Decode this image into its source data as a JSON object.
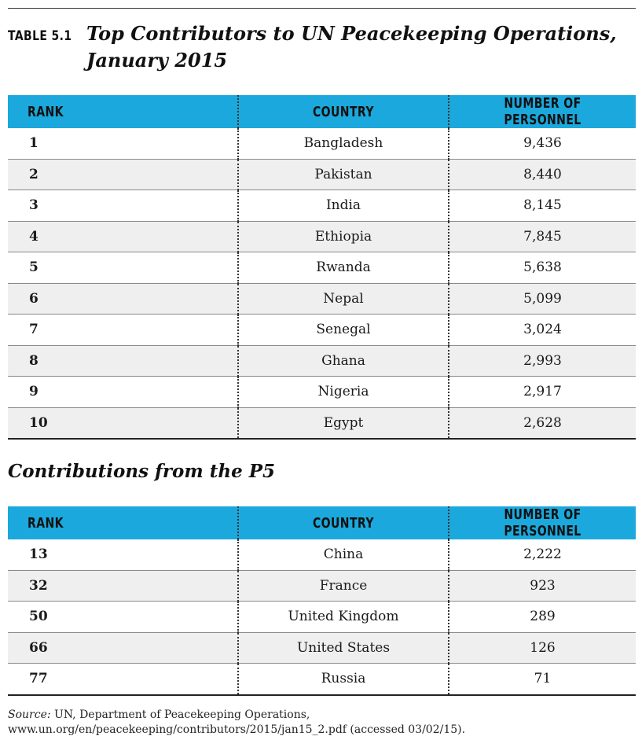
{
  "table_label": "TABLE 5.1",
  "title": "Top Contributors to UN Peacekeeping Operations, January 2015",
  "columns": {
    "rank": "RANK",
    "country": "COUNTRY",
    "personnel": "NUMBER OF PERSONNEL"
  },
  "top_rows": [
    {
      "rank": "1",
      "country": "Bangladesh",
      "personnel": "9,436"
    },
    {
      "rank": "2",
      "country": "Pakistan",
      "personnel": "8,440"
    },
    {
      "rank": "3",
      "country": "India",
      "personnel": "8,145"
    },
    {
      "rank": "4",
      "country": "Ethiopia",
      "personnel": "7,845"
    },
    {
      "rank": "5",
      "country": "Rwanda",
      "personnel": "5,638"
    },
    {
      "rank": "6",
      "country": "Nepal",
      "personnel": "5,099"
    },
    {
      "rank": "7",
      "country": "Senegal",
      "personnel": "3,024"
    },
    {
      "rank": "8",
      "country": "Ghana",
      "personnel": "2,993"
    },
    {
      "rank": "9",
      "country": "Nigeria",
      "personnel": "2,917"
    },
    {
      "rank": "10",
      "country": "Egypt",
      "personnel": "2,628"
    }
  ],
  "p5_heading": "Contributions from the P5",
  "p5_rows": [
    {
      "rank": "13",
      "country": "China",
      "personnel": "2,222"
    },
    {
      "rank": "32",
      "country": "France",
      "personnel": "923"
    },
    {
      "rank": "50",
      "country": "United Kingdom",
      "personnel": "289"
    },
    {
      "rank": "66",
      "country": "United States",
      "personnel": "126"
    },
    {
      "rank": "77",
      "country": "Russia",
      "personnel": "71"
    }
  ],
  "source": {
    "label": "Source:",
    "text": "UN, Department of Peacekeeping Operations, www.un.org/en/peacekeeping/contributors/2015/jan15_2.pdf (accessed 03/02/15)."
  },
  "colors": {
    "header_fill": "#1ba8dc",
    "stripe": "#efefef"
  }
}
